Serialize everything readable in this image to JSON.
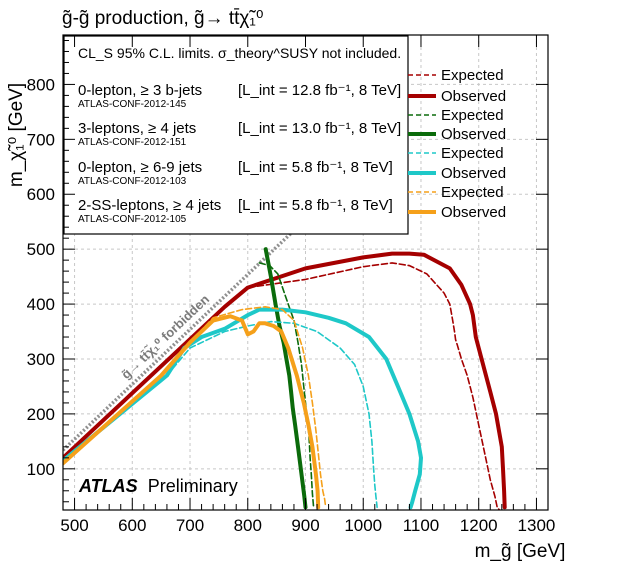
{
  "chart_data": {
    "type": "line",
    "title": "g̃-g̃ production, g̃→ tt̄χ̃₁⁰",
    "xlabel": "m_g̃ [GeV]",
    "ylabel": "m_χ̃₁⁰ [GeV]",
    "xlim": [
      480,
      1320
    ],
    "ylim": [
      25,
      890
    ],
    "x_ticks": [
      500,
      600,
      700,
      800,
      900,
      1000,
      1100,
      1200,
      1300
    ],
    "y_ticks": [
      100,
      200,
      300,
      400,
      500,
      600,
      700,
      800
    ],
    "grid": true,
    "note": "CL_S 95% C.L. limits. σ_theory^SUSY not included.",
    "forbidden_label": "g̃→ tt̄χ̃₁⁰ forbidden",
    "experiment": "ATLAS",
    "experiment_suffix": "Preliminary",
    "legend": [
      {
        "analysis": "0-lepton, ≥ 3 b-jets",
        "ref": "ATLAS-CONF-2012-145",
        "lumi": "[L_int = 12.8 fb⁻¹, 8 TeV]",
        "color": "#a50000"
      },
      {
        "analysis": "3-leptons, ≥ 4 jets",
        "ref": "ATLAS-CONF-2012-151",
        "lumi": "[L_int = 13.0 fb⁻¹, 8 TeV]",
        "color": "#0b6b0b"
      },
      {
        "analysis": "0-lepton, ≥ 6-9 jets",
        "ref": "ATLAS-CONF-2012-103",
        "lumi": "[L_int = 5.8 fb⁻¹, 8 TeV]",
        "color": "#1ec8c8"
      },
      {
        "analysis": "2-SS-leptons, ≥ 4 jets",
        "ref": "ATLAS-CONF-2012-105",
        "lumi": "[L_int = 5.8 fb⁻¹, 8 TeV]",
        "color": "#f5a01a"
      }
    ],
    "expected_label": "Expected",
    "observed_label": "Observed",
    "series": [
      {
        "name": "0-lepton, ≥ 3 b-jets Observed",
        "color": "#a50000",
        "dash": false,
        "x": [
          480,
          760,
          800,
          900,
          1000,
          1050,
          1080,
          1105,
          1150,
          1170,
          1185,
          1190,
          1195,
          1200,
          1210,
          1220,
          1230,
          1240,
          1242,
          1244,
          1245
        ],
        "y": [
          120,
          395,
          430,
          465,
          485,
          492,
          492,
          490,
          465,
          435,
          400,
          380,
          340,
          320,
          280,
          240,
          200,
          140,
          100,
          60,
          30
        ]
      },
      {
        "name": "0-lepton, ≥ 3 b-jets Expected",
        "color": "#a50000",
        "dash": true,
        "x": [
          480,
          760,
          800,
          900,
          1000,
          1050,
          1080,
          1110,
          1140,
          1150,
          1155,
          1158,
          1160,
          1163,
          1170,
          1180,
          1190,
          1200,
          1210,
          1220,
          1228,
          1232,
          1236
        ],
        "y": [
          120,
          393,
          430,
          445,
          468,
          475,
          470,
          455,
          420,
          400,
          370,
          350,
          335,
          325,
          300,
          270,
          230,
          180,
          130,
          80,
          50,
          30,
          25
        ]
      },
      {
        "name": "3-leptons, ≥ 4 jets Observed",
        "color": "#0b6b0b",
        "dash": false,
        "x": [
          831,
          840,
          848,
          855,
          862,
          867,
          872,
          875,
          878,
          882,
          887,
          893,
          898,
          900
        ],
        "y": [
          500,
          450,
          400,
          360,
          330,
          300,
          270,
          240,
          210,
          180,
          140,
          90,
          50,
          30
        ]
      },
      {
        "name": "3-leptons, ≥ 4 jets Expected",
        "color": "#0b6b0b",
        "dash": true,
        "x": [
          820,
          838,
          852,
          870,
          880,
          887,
          893,
          898,
          902,
          906,
          908,
          910,
          912,
          914
        ],
        "y": [
          475,
          470,
          455,
          400,
          370,
          330,
          290,
          240,
          200,
          160,
          120,
          90,
          55,
          30
        ]
      },
      {
        "name": "0-lepton, ≥ 6-9 jets Observed",
        "color": "#1ec8c8",
        "dash": false,
        "x": [
          480,
          660,
          690,
          720,
          760,
          800,
          820,
          860,
          900,
          940,
          970,
          1010,
          1040,
          1060,
          1080,
          1095,
          1100,
          1098,
          1090,
          1085,
          1082
        ],
        "y": [
          115,
          270,
          320,
          340,
          355,
          380,
          390,
          390,
          385,
          375,
          365,
          340,
          300,
          250,
          200,
          150,
          120,
          90,
          60,
          40,
          30
        ]
      },
      {
        "name": "0-lepton, ≥ 6-9 jets Expected",
        "color": "#1ec8c8",
        "dash": true,
        "x": [
          480,
          660,
          700,
          760,
          800,
          840,
          880,
          920,
          960,
          985,
          1000,
          1010,
          1015,
          1018,
          1020,
          1022,
          1024
        ],
        "y": [
          112,
          270,
          320,
          350,
          360,
          368,
          365,
          350,
          320,
          290,
          250,
          200,
          150,
          100,
          70,
          50,
          30
        ]
      },
      {
        "name": "2-SS-leptons, ≥ 4 jets Observed",
        "color": "#f5a01a",
        "dash": false,
        "x": [
          480,
          650,
          700,
          740,
          770,
          790,
          800,
          810,
          820,
          830,
          845,
          858,
          870,
          885,
          897,
          905,
          912,
          918,
          921,
          922
        ],
        "y": [
          110,
          270,
          330,
          370,
          378,
          370,
          345,
          350,
          365,
          365,
          360,
          350,
          320,
          270,
          220,
          180,
          140,
          90,
          60,
          30
        ]
      },
      {
        "name": "2-SS-leptons, ≥ 4 jets Expected",
        "color": "#f5a01a",
        "dash": true,
        "x": [
          480,
          650,
          700,
          740,
          790,
          830,
          860,
          880,
          895,
          905,
          912,
          918,
          922,
          926,
          930,
          933,
          935
        ],
        "y": [
          110,
          270,
          330,
          375,
          390,
          395,
          390,
          370,
          320,
          270,
          220,
          170,
          130,
          90,
          60,
          45,
          30
        ]
      }
    ]
  }
}
